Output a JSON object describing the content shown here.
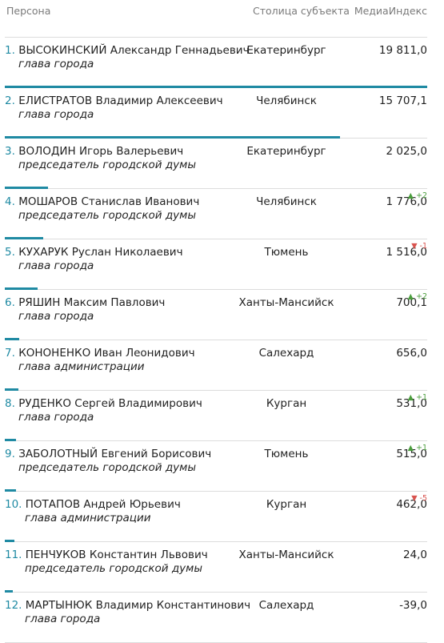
{
  "header": {
    "person": "Персона",
    "capital": "Столица субъекта",
    "index": "МедиаИндекс"
  },
  "rows": [
    {
      "rank": "1.",
      "name": "ВЫСОКИНСКИЙ Александр Геннадьевич",
      "role": "глава города",
      "capital": "Екатеринбург",
      "value": "19 811,0",
      "share": 1.0,
      "delta_dir": "",
      "delta": ""
    },
    {
      "rank": "2.",
      "name": "ЕЛИСТРАТОВ Владимир Алексеевич",
      "role": "глава города",
      "capital": "Челябинск",
      "value": "15 707,1",
      "share": 0.793,
      "delta_dir": "",
      "delta": ""
    },
    {
      "rank": "3.",
      "name": "ВОЛОДИН Игорь Валерьевич",
      "role": "председатель городской думы",
      "capital": "Екатеринбург",
      "value": "2 025,0",
      "share": 0.102,
      "delta_dir": "",
      "delta": ""
    },
    {
      "rank": "4.",
      "name": "МОШАРОВ Станислав Иванович",
      "role": "председатель городской думы",
      "capital": "Челябинск",
      "value": "1 776,0",
      "share": 0.09,
      "delta_dir": "up",
      "delta": "▲ +2"
    },
    {
      "rank": "5.",
      "name": "КУХАРУК Руслан Николаевич",
      "role": "глава города",
      "capital": "Тюмень",
      "value": "1 516,0",
      "share": 0.077,
      "delta_dir": "down",
      "delta": "▼ -1"
    },
    {
      "rank": "6.",
      "name": "РЯШИН Максим Павлович",
      "role": "глава города",
      "capital": "Ханты-Мансийск",
      "value": "700,1",
      "share": 0.035,
      "delta_dir": "up",
      "delta": "▲ +2"
    },
    {
      "rank": "7.",
      "name": "КОНОНЕНКО Иван Леонидович",
      "role": "глава администрации",
      "capital": "Салехард",
      "value": "656,0",
      "share": 0.033,
      "delta_dir": "",
      "delta": ""
    },
    {
      "rank": "8.",
      "name": "РУДЕНКО Сергей Владимирович",
      "role": "глава города",
      "capital": "Курган",
      "value": "531,0",
      "share": 0.027,
      "delta_dir": "up",
      "delta": "▲ +1"
    },
    {
      "rank": "9.",
      "name": "ЗАБОЛОТНЫЙ Евгений Борисович",
      "role": "председатель городской думы",
      "capital": "Тюмень",
      "value": "515,0",
      "share": 0.026,
      "delta_dir": "up",
      "delta": "▲ +1"
    },
    {
      "rank": "10.",
      "name": "ПОТАПОВ Андрей Юрьевич",
      "role": "глава администрации",
      "capital": "Курган",
      "value": "462,0",
      "share": 0.023,
      "delta_dir": "down",
      "delta": "▼ -5"
    },
    {
      "rank": "11.",
      "name": "ПЕНЧУКОВ Константин Львович",
      "role": "председатель городской думы",
      "capital": "Ханты-Мансийск",
      "value": "24,0",
      "share": 0.0012,
      "delta_dir": "",
      "delta": ""
    },
    {
      "rank": "12.",
      "name": "МАРТЫНЮК Владимир Константинович",
      "role": "глава города",
      "capital": "Салехард",
      "value": "-39,0",
      "share": 0,
      "delta_dir": "",
      "delta": ""
    }
  ]
}
